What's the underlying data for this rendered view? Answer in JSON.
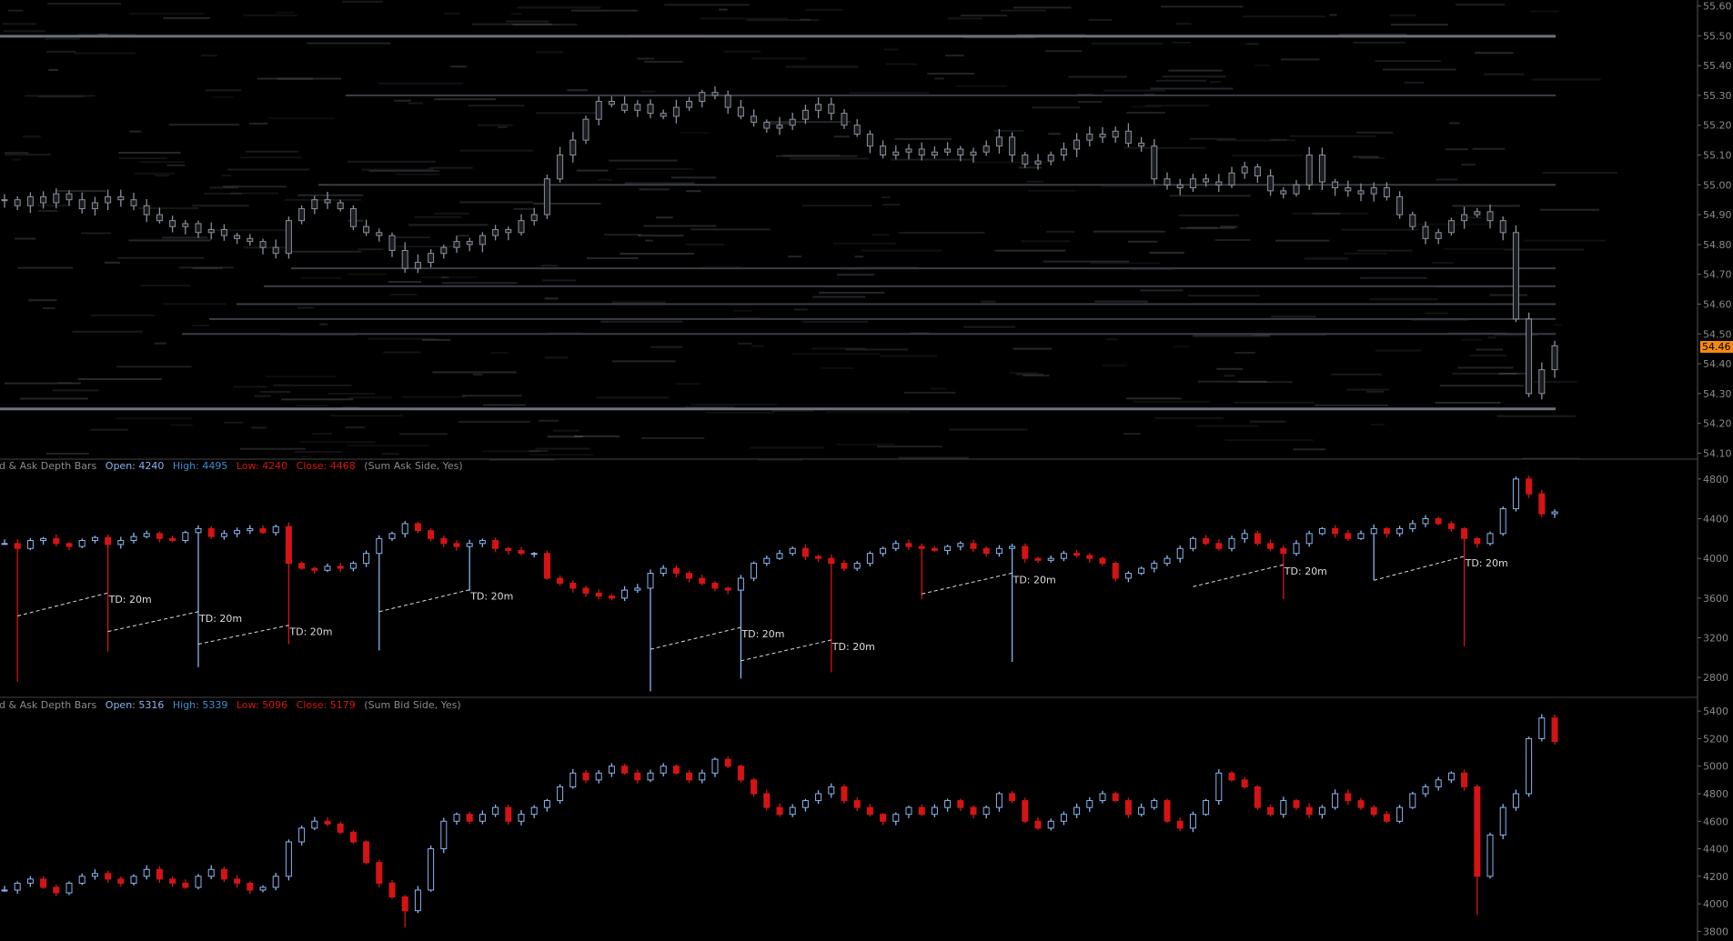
{
  "chart_data": [
    {
      "type": "candlestick",
      "panel": "price",
      "y_ticks": [
        "55.60",
        "55.50",
        "55.40",
        "55.30",
        "55.20",
        "55.10",
        "55.00",
        "54.90",
        "54.80",
        "54.70",
        "54.60",
        "54.50",
        "54.40",
        "54.30",
        "54.20",
        "54.10"
      ],
      "ylim": [
        54.08,
        55.62
      ],
      "last_price": "54.46",
      "last_price_color": "#f5890f",
      "levels": [
        55.5,
        54.25,
        54.5,
        54.55,
        54.6,
        54.66,
        54.72,
        55.0,
        55.3
      ],
      "closes": [
        54.95,
        54.93,
        54.96,
        54.94,
        54.97,
        54.95,
        54.92,
        54.94,
        54.96,
        54.95,
        54.93,
        54.9,
        54.88,
        54.86,
        54.87,
        54.84,
        54.85,
        54.83,
        54.82,
        54.81,
        54.79,
        54.77,
        54.88,
        54.92,
        54.95,
        54.94,
        54.92,
        54.86,
        54.84,
        54.83,
        54.78,
        54.72,
        54.74,
        54.77,
        54.79,
        54.81,
        54.8,
        54.83,
        54.85,
        54.84,
        54.88,
        54.9,
        55.02,
        55.1,
        55.15,
        55.22,
        55.28,
        55.27,
        55.25,
        55.27,
        55.24,
        55.23,
        55.26,
        55.28,
        55.31,
        55.3,
        55.26,
        55.23,
        55.21,
        55.19,
        55.2,
        55.22,
        55.25,
        55.27,
        55.24,
        55.2,
        55.17,
        55.13,
        55.1,
        55.11,
        55.12,
        55.1,
        55.11,
        55.12,
        55.1,
        55.11,
        55.13,
        55.16,
        55.1,
        55.07,
        55.08,
        55.1,
        55.12,
        55.15,
        55.17,
        55.16,
        55.18,
        55.14,
        55.13,
        55.02,
        55.0,
        54.99,
        55.02,
        55.01,
        55.0,
        55.04,
        55.06,
        55.03,
        54.98,
        54.97,
        55.0,
        55.1,
        55.01,
        54.99,
        54.98,
        54.97,
        54.99,
        54.96,
        54.9,
        54.86,
        54.82,
        54.84,
        54.88,
        54.9,
        54.91,
        54.88,
        54.84,
        54.55,
        54.3,
        54.38,
        54.46
      ],
      "candle_color": "#8a8f99"
    },
    {
      "type": "candlestick",
      "panel": "ask",
      "legend": {
        "name": "id & Ask Depth Bars",
        "open": "Open: 4240",
        "high": "High: 4495",
        "low": "Low: 4240",
        "close": "Close: 4468",
        "params": "(Sum Ask Side, Yes)"
      },
      "y_ticks": [
        "4800",
        "4400",
        "4000",
        "3600",
        "3200",
        "2800"
      ],
      "ylim": [
        2600,
        5000
      ],
      "up_color": "#8ab4ee",
      "down_color": "#d41414",
      "closes": [
        4150,
        4100,
        4180,
        4200,
        4150,
        4120,
        4180,
        4210,
        4140,
        4180,
        4220,
        4250,
        4200,
        4180,
        4260,
        4300,
        4220,
        4250,
        4280,
        4300,
        4260,
        4320,
        3950,
        3900,
        3880,
        3920,
        3900,
        3950,
        4050,
        4200,
        4250,
        4350,
        4280,
        4200,
        4150,
        4120,
        4150,
        4180,
        4100,
        4080,
        4050,
        4050,
        3800,
        3750,
        3700,
        3650,
        3620,
        3600,
        3680,
        3700,
        3850,
        3900,
        3850,
        3800,
        3750,
        3700,
        3680,
        3800,
        3950,
        4000,
        4050,
        4100,
        4020,
        4000,
        3950,
        3900,
        3950,
        4050,
        4100,
        4150,
        4120,
        4100,
        4080,
        4120,
        4150,
        4100,
        4050,
        4100,
        4120,
        4000,
        3980,
        4000,
        4050,
        4030,
        4000,
        3950,
        3800,
        3850,
        3900,
        3950,
        4000,
        4100,
        4200,
        4150,
        4100,
        4200,
        4250,
        4150,
        4100,
        4050,
        4150,
        4250,
        4300,
        4250,
        4200,
        4250,
        4300,
        4250,
        4300,
        4350,
        4400,
        4350,
        4300,
        4200,
        4150,
        4250,
        4500,
        4800,
        4650,
        4450,
        4468
      ],
      "spikes": [
        {
          "i": 1,
          "low": 2757
        },
        {
          "i": 8,
          "low": 3060
        },
        {
          "i": 15,
          "low": 2905
        },
        {
          "i": 22,
          "low": 3136
        },
        {
          "i": 29,
          "low": 3073
        },
        {
          "i": 36,
          "low": 3673
        },
        {
          "i": 50,
          "low": 2660
        },
        {
          "i": 57,
          "low": 2790
        },
        {
          "i": 64,
          "low": 2853
        },
        {
          "i": 71,
          "low": 3589
        },
        {
          "i": 78,
          "low": 2957
        },
        {
          "i": 99,
          "low": 3589
        },
        {
          "i": 106,
          "low": 3779
        },
        {
          "i": 113,
          "low": 3115
        }
      ],
      "annotations": [
        {
          "from_i": 1,
          "from_v": 3420,
          "to_i": 8,
          "to_v": 3652,
          "label": "TD: 20m"
        },
        {
          "from_i": 8,
          "from_v": 3263,
          "to_i": 15,
          "to_v": 3463,
          "label": "TD: 20m"
        },
        {
          "from_i": 15,
          "from_v": 3136,
          "to_i": 22,
          "to_v": 3326,
          "label": "TD: 20m"
        },
        {
          "from_i": 29,
          "from_v": 3463,
          "to_i": 36,
          "to_v": 3684,
          "label": "TD: 20m"
        },
        {
          "from_i": 50,
          "from_v": 3084,
          "to_i": 57,
          "to_v": 3305,
          "label": "TD: 20m"
        },
        {
          "from_i": 57,
          "from_v": 2968,
          "to_i": 64,
          "to_v": 3178,
          "label": "TD: 20m"
        },
        {
          "from_i": 71,
          "from_v": 3642,
          "to_i": 78,
          "to_v": 3852,
          "label": "TD: 20m"
        },
        {
          "from_i": 92,
          "from_v": 3715,
          "to_i": 99,
          "to_v": 3936,
          "label": "TD: 20m"
        },
        {
          "from_i": 106,
          "from_v": 3779,
          "to_i": 113,
          "to_v": 4021,
          "label": "TD: 20m"
        }
      ]
    },
    {
      "type": "candlestick",
      "panel": "bid",
      "legend": {
        "name": "id & Ask Depth Bars",
        "open": "Open: 5316",
        "high": "High: 5339",
        "low": "Low: 5096",
        "close": "Close: 5179",
        "params": "(Sum Bid Side, Yes)"
      },
      "y_ticks": [
        "5400",
        "5200",
        "5000",
        "4800",
        "4600",
        "4400",
        "4200",
        "4000",
        "3800"
      ],
      "ylim": [
        3730,
        5500
      ],
      "up_color": "#8ab4ee",
      "down_color": "#d41414",
      "closes": [
        4100,
        4150,
        4180,
        4120,
        4080,
        4150,
        4200,
        4220,
        4180,
        4150,
        4200,
        4250,
        4180,
        4150,
        4120,
        4200,
        4250,
        4180,
        4150,
        4100,
        4120,
        4200,
        4450,
        4550,
        4600,
        4580,
        4520,
        4450,
        4300,
        4150,
        4050,
        3950,
        4100,
        4400,
        4600,
        4650,
        4600,
        4650,
        4700,
        4600,
        4650,
        4700,
        4750,
        4850,
        4950,
        4900,
        4950,
        5000,
        4950,
        4900,
        4950,
        5000,
        4950,
        4900,
        4950,
        5050,
        5000,
        4900,
        4800,
        4700,
        4650,
        4700,
        4750,
        4800,
        4850,
        4750,
        4700,
        4650,
        4600,
        4650,
        4700,
        4650,
        4700,
        4750,
        4700,
        4650,
        4700,
        4800,
        4750,
        4600,
        4550,
        4600,
        4650,
        4700,
        4750,
        4800,
        4750,
        4650,
        4700,
        4750,
        4600,
        4550,
        4650,
        4750,
        4950,
        4900,
        4850,
        4700,
        4650,
        4750,
        4700,
        4650,
        4700,
        4800,
        4750,
        4700,
        4650,
        4600,
        4700,
        4800,
        4850,
        4900,
        4950,
        4850,
        4200,
        4500,
        4700,
        4800,
        5200,
        5350,
        5179
      ],
      "spikes": [
        {
          "i": 31,
          "low": 3830
        },
        {
          "i": 114,
          "low": 3920
        }
      ]
    }
  ]
}
